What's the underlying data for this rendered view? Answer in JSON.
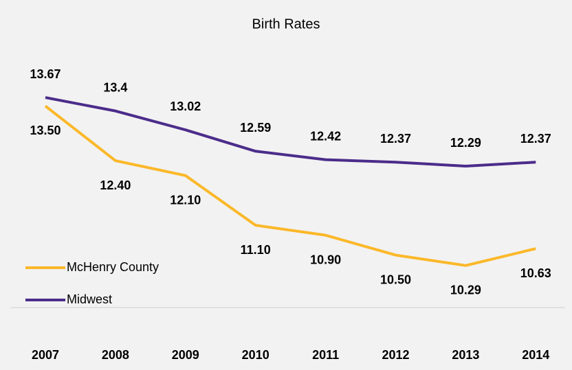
{
  "chart_data": {
    "type": "line",
    "title": "Birth Rates",
    "categories": [
      "2007",
      "2008",
      "2009",
      "2010",
      "2011",
      "2012",
      "2013",
      "2014"
    ],
    "series": [
      {
        "name": "McHenry County",
        "color": "#fbb829",
        "values": [
          13.5,
          12.4,
          12.1,
          11.1,
          10.9,
          10.5,
          10.29,
          10.63
        ],
        "value_labels": [
          "13.50",
          "12.40",
          "12.10",
          "11.10",
          "10.90",
          "10.50",
          "10.29",
          "10.63"
        ]
      },
      {
        "name": "Midwest",
        "color": "#4b2c8a",
        "values": [
          13.67,
          13.4,
          13.02,
          12.59,
          12.42,
          12.37,
          12.29,
          12.37
        ]
      }
    ],
    "ylim": [
      9.5,
      14.5
    ],
    "legend": "left"
  }
}
